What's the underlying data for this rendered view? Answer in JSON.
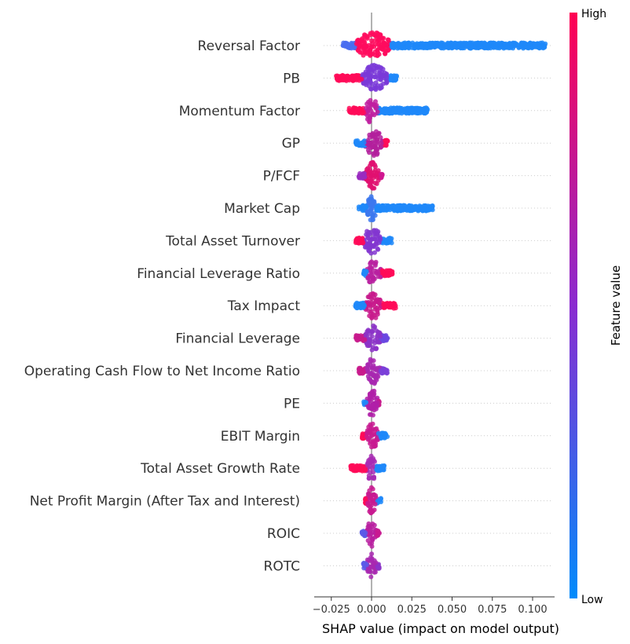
{
  "chart_data": {
    "type": "beeswarm",
    "xlabel": "SHAP value (impact on model output)",
    "xlim": [
      -0.03,
      0.114
    ],
    "xticks": [
      -0.025,
      0.0,
      0.025,
      0.05,
      0.075,
      0.1
    ],
    "xtick_labels": [
      "−0.025",
      "0.000",
      "0.025",
      "0.050",
      "0.075",
      "0.100"
    ],
    "colorbar": {
      "title": "Feature value",
      "high_label": "High",
      "low_label": "Low",
      "high_color": "#ff0052",
      "low_color": "#008bfb"
    },
    "features": [
      {
        "name": "Reversal Factor",
        "min": -0.018,
        "max": 0.108,
        "core": [
          -0.01,
          0.012
        ],
        "left_color": "#4a6ef0",
        "right_color": "#1e88f9",
        "core_color": "#ff0c5e"
      },
      {
        "name": "PB",
        "min": -0.022,
        "max": 0.016,
        "core": [
          -0.006,
          0.01
        ],
        "left_color": "#ff0a58",
        "right_color": "#1e88f9",
        "core_color": "#7a3ad8"
      },
      {
        "name": "Momentum Factor",
        "min": -0.014,
        "max": 0.035,
        "core": [
          -0.004,
          0.004
        ],
        "left_color": "#ff0a58",
        "right_color": "#1e88f9",
        "core_color": "#c01ea0"
      },
      {
        "name": "GP",
        "min": -0.01,
        "max": 0.01,
        "core": [
          -0.004,
          0.007
        ],
        "left_color": "#1e88f9",
        "right_color": "#ff0a58",
        "core_color": "#b3209c"
      },
      {
        "name": "P/FCF",
        "min": -0.008,
        "max": 0.007,
        "core": [
          -0.004,
          0.005
        ],
        "left_color": "#9a2cc0",
        "right_color": "#d01890",
        "core_color": "#e01070"
      },
      {
        "name": "Market Cap",
        "min": -0.008,
        "max": 0.038,
        "core": [
          -0.003,
          0.003
        ],
        "left_color": "#1e88f9",
        "right_color": "#1e88f9",
        "core_color": "#3c78ee"
      },
      {
        "name": "Total Asset Turnover",
        "min": -0.01,
        "max": 0.013,
        "core": [
          -0.005,
          0.006
        ],
        "left_color": "#ff0a58",
        "right_color": "#1e88f9",
        "core_color": "#8236d0"
      },
      {
        "name": "Financial Leverage Ratio",
        "min": -0.005,
        "max": 0.013,
        "core": [
          -0.003,
          0.006
        ],
        "left_color": "#1e88f9",
        "right_color": "#ff0a58",
        "core_color": "#b820a0"
      },
      {
        "name": "Tax Impact",
        "min": -0.01,
        "max": 0.015,
        "core": [
          -0.004,
          0.006
        ],
        "left_color": "#1e88f9",
        "right_color": "#ff0a58",
        "core_color": "#c81a8c"
      },
      {
        "name": "Financial Leverage",
        "min": -0.01,
        "max": 0.01,
        "core": [
          -0.004,
          0.006
        ],
        "left_color": "#c81a8c",
        "right_color": "#6a48e0",
        "core_color": "#8c34c8"
      },
      {
        "name": "Operating Cash Flow to Net Income Ratio",
        "min": -0.008,
        "max": 0.01,
        "core": [
          -0.003,
          0.005
        ],
        "left_color": "#c81a8c",
        "right_color": "#7a40d8",
        "core_color": "#a828b0"
      },
      {
        "name": "PE",
        "min": -0.005,
        "max": 0.005,
        "core": [
          -0.003,
          0.004
        ],
        "left_color": "#1e88f9",
        "right_color": "#c81a8c",
        "core_color": "#b020a8"
      },
      {
        "name": "EBIT Margin",
        "min": -0.006,
        "max": 0.01,
        "core": [
          -0.003,
          0.004
        ],
        "left_color": "#ff0a58",
        "right_color": "#1e88f9",
        "core_color": "#c81a90"
      },
      {
        "name": "Total Asset Growth Rate",
        "min": -0.013,
        "max": 0.008,
        "core": [
          -0.003,
          0.003
        ],
        "left_color": "#ff0a58",
        "right_color": "#1e88f9",
        "core_color": "#a82cb4"
      },
      {
        "name": "Net Profit Margin (After Tax and Interest)",
        "min": -0.004,
        "max": 0.006,
        "core": [
          -0.003,
          0.003
        ],
        "left_color": "#ff0a58",
        "right_color": "#1e88f9",
        "core_color": "#c81a90"
      },
      {
        "name": "ROIC",
        "min": -0.006,
        "max": 0.005,
        "core": [
          -0.003,
          0.003
        ],
        "left_color": "#5a5ae8",
        "right_color": "#c81a90",
        "core_color": "#b820a0"
      },
      {
        "name": "ROTC",
        "min": -0.006,
        "max": 0.005,
        "core": [
          -0.003,
          0.003
        ],
        "left_color": "#5a5ae8",
        "right_color": "#8c34c8",
        "core_color": "#a828b0"
      }
    ]
  }
}
